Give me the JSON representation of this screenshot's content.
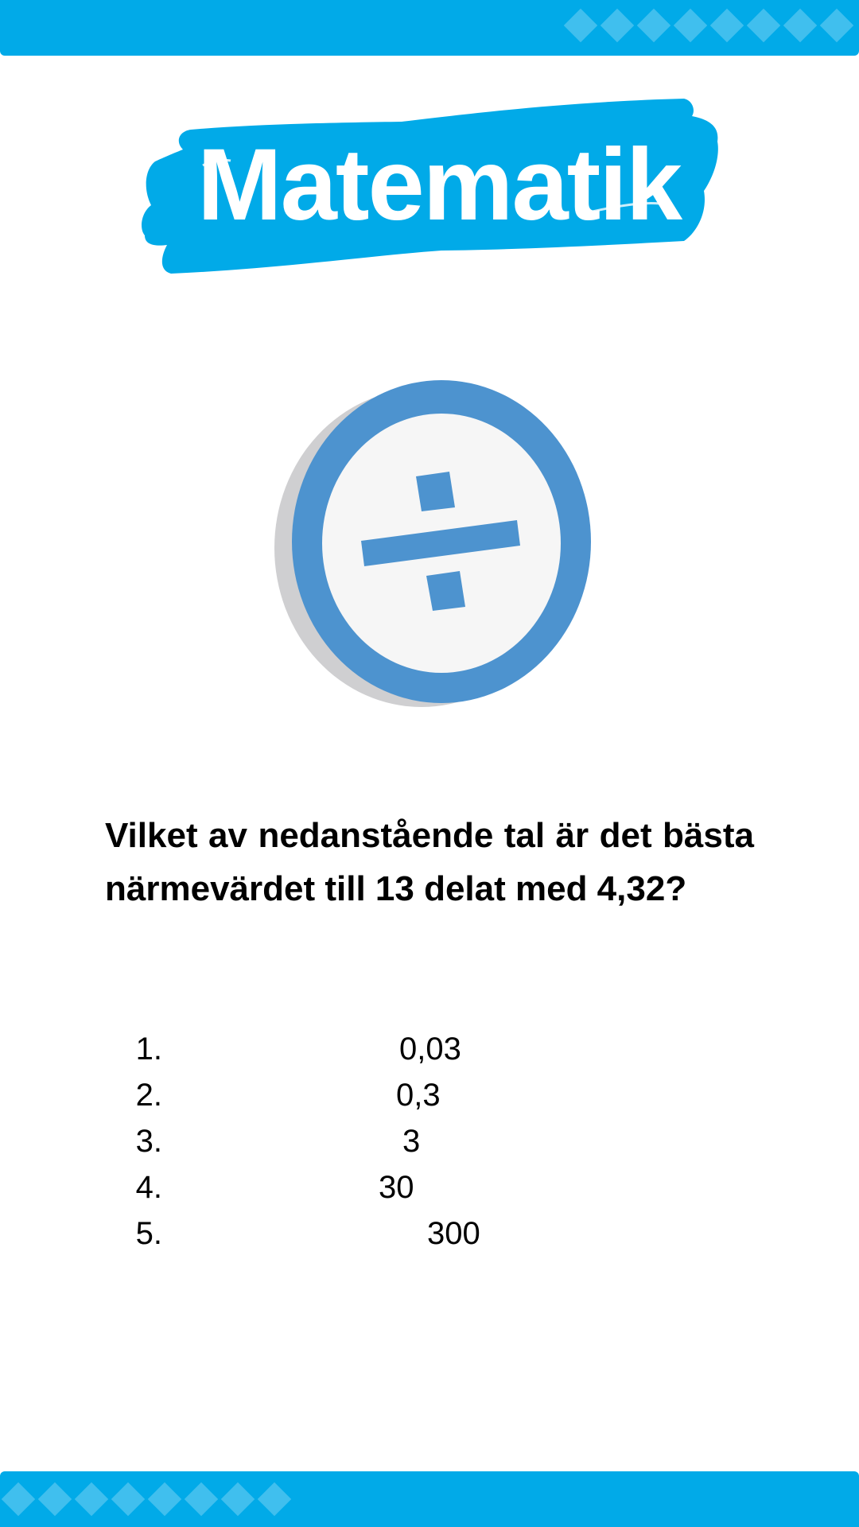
{
  "colors": {
    "bar": "#01aae8",
    "banner": "#01aae8",
    "icon_ring": "#4d93cf",
    "icon_face": "#f6f6f6",
    "icon_shadow": "#cfcfd1",
    "text": "#000000"
  },
  "header": {
    "title": "Matematik",
    "icon": "division-icon"
  },
  "question": {
    "text": "Vilket av nedanstående tal är det bästa närmevärdet till 13 delat med 4,32?"
  },
  "options": [
    {
      "number": "1.",
      "value": "0,03"
    },
    {
      "number": "2.",
      "value": "0,3"
    },
    {
      "number": "3.",
      "value": "3"
    },
    {
      "number": "4.",
      "value": "30"
    },
    {
      "number": "5.",
      "value": "300"
    }
  ]
}
